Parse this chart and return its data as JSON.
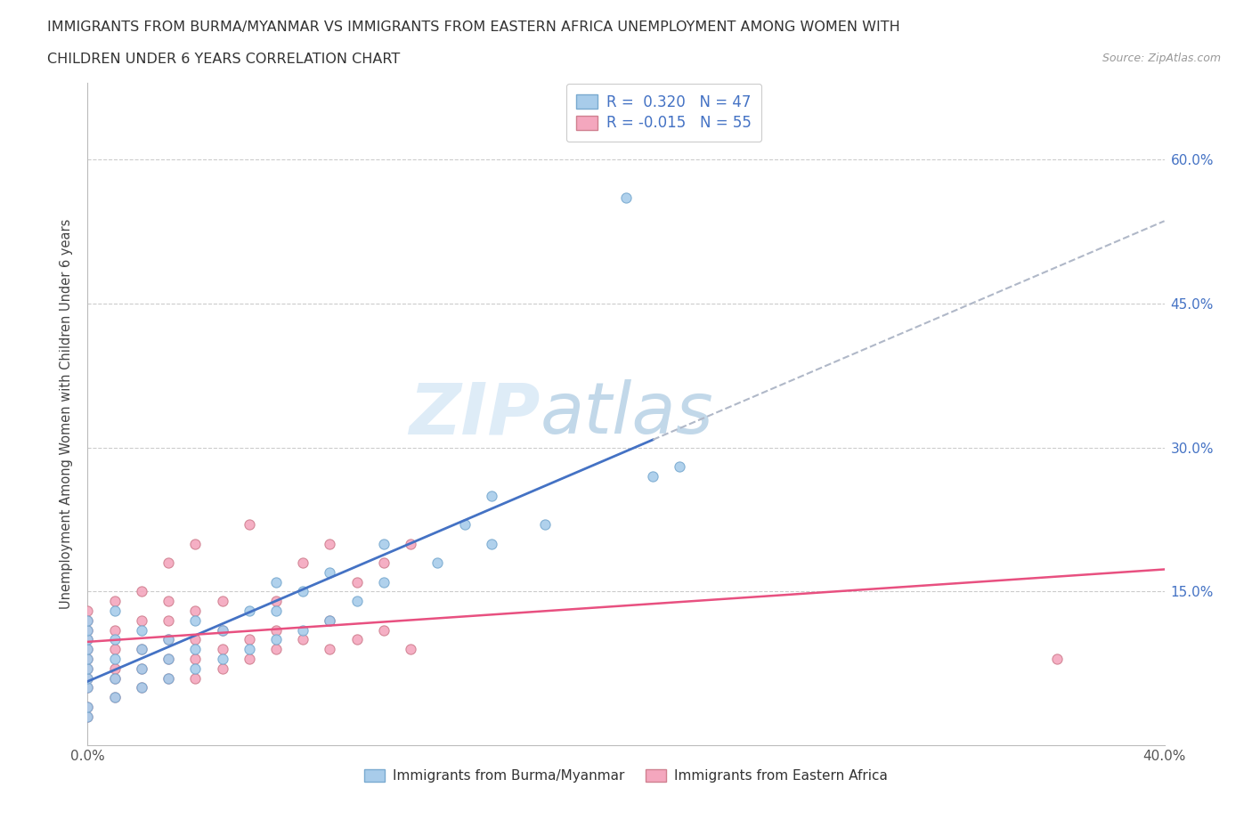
{
  "title_line1": "IMMIGRANTS FROM BURMA/MYANMAR VS IMMIGRANTS FROM EASTERN AFRICA UNEMPLOYMENT AMONG WOMEN WITH",
  "title_line2": "CHILDREN UNDER 6 YEARS CORRELATION CHART",
  "source_text": "Source: ZipAtlas.com",
  "ylabel": "Unemployment Among Women with Children Under 6 years",
  "legend_label1": "Immigrants from Burma/Myanmar",
  "legend_label2": "Immigrants from Eastern Africa",
  "R1": 0.32,
  "N1": 47,
  "R2": -0.015,
  "N2": 55,
  "xlim": [
    0,
    0.4
  ],
  "ylim": [
    -0.01,
    0.68
  ],
  "ytick_right": [
    0.15,
    0.3,
    0.45,
    0.6
  ],
  "ytick_right_labels": [
    "15.0%",
    "30.0%",
    "45.0%",
    "60.0%"
  ],
  "color_burma": "#A8CCEA",
  "color_africa": "#F4A7BE",
  "color_line_burma": "#4472C4",
  "color_line_africa": "#E85080",
  "watermark_zip": "ZIP",
  "watermark_atlas": "atlas",
  "burma_x": [
    0.0,
    0.0,
    0.0,
    0.0,
    0.0,
    0.0,
    0.0,
    0.0,
    0.0,
    0.0,
    0.01,
    0.01,
    0.01,
    0.01,
    0.01,
    0.02,
    0.02,
    0.02,
    0.02,
    0.03,
    0.03,
    0.03,
    0.04,
    0.04,
    0.04,
    0.05,
    0.05,
    0.06,
    0.06,
    0.07,
    0.07,
    0.07,
    0.08,
    0.08,
    0.09,
    0.09,
    0.1,
    0.11,
    0.11,
    0.13,
    0.14,
    0.15,
    0.15,
    0.17,
    0.2,
    0.21,
    0.22
  ],
  "burma_y": [
    0.02,
    0.03,
    0.05,
    0.06,
    0.07,
    0.08,
    0.09,
    0.1,
    0.11,
    0.12,
    0.04,
    0.06,
    0.08,
    0.1,
    0.13,
    0.05,
    0.07,
    0.09,
    0.11,
    0.06,
    0.08,
    0.1,
    0.07,
    0.09,
    0.12,
    0.08,
    0.11,
    0.09,
    0.13,
    0.1,
    0.13,
    0.16,
    0.11,
    0.15,
    0.12,
    0.17,
    0.14,
    0.16,
    0.2,
    0.18,
    0.22,
    0.2,
    0.25,
    0.22,
    0.56,
    0.27,
    0.28
  ],
  "africa_x": [
    0.0,
    0.0,
    0.0,
    0.0,
    0.0,
    0.0,
    0.0,
    0.0,
    0.0,
    0.0,
    0.0,
    0.01,
    0.01,
    0.01,
    0.01,
    0.01,
    0.01,
    0.02,
    0.02,
    0.02,
    0.02,
    0.02,
    0.03,
    0.03,
    0.03,
    0.03,
    0.03,
    0.03,
    0.04,
    0.04,
    0.04,
    0.04,
    0.04,
    0.05,
    0.05,
    0.05,
    0.05,
    0.06,
    0.06,
    0.06,
    0.07,
    0.07,
    0.07,
    0.08,
    0.08,
    0.09,
    0.09,
    0.09,
    0.1,
    0.1,
    0.11,
    0.11,
    0.12,
    0.12,
    0.36
  ],
  "africa_y": [
    0.02,
    0.03,
    0.05,
    0.06,
    0.07,
    0.08,
    0.09,
    0.1,
    0.11,
    0.12,
    0.13,
    0.04,
    0.06,
    0.07,
    0.09,
    0.11,
    0.14,
    0.05,
    0.07,
    0.09,
    0.12,
    0.15,
    0.06,
    0.08,
    0.1,
    0.12,
    0.14,
    0.18,
    0.06,
    0.08,
    0.1,
    0.13,
    0.2,
    0.07,
    0.09,
    0.11,
    0.14,
    0.08,
    0.1,
    0.22,
    0.09,
    0.11,
    0.14,
    0.1,
    0.18,
    0.09,
    0.12,
    0.2,
    0.1,
    0.16,
    0.11,
    0.18,
    0.09,
    0.2,
    0.08
  ]
}
